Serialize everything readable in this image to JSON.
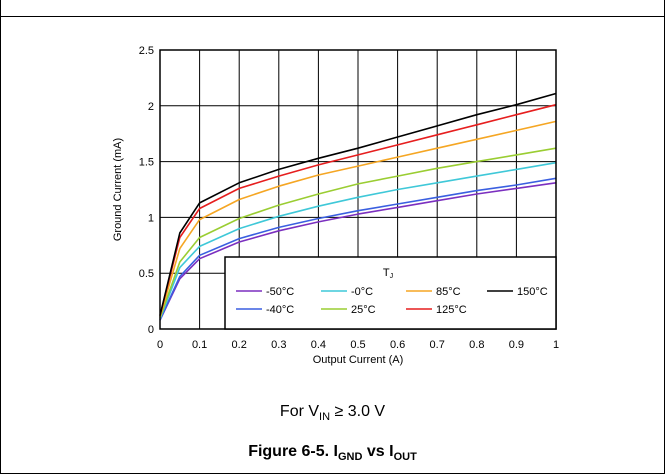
{
  "chart_data": {
    "type": "line",
    "xlabel": "Output Current (A)",
    "ylabel": "Ground Current (mA)",
    "xlim": [
      0,
      1
    ],
    "ylim": [
      0,
      2.5
    ],
    "x_ticks": [
      "0",
      "0.1",
      "0.2",
      "0.3",
      "0.4",
      "0.5",
      "0.6",
      "0.7",
      "0.8",
      "0.9",
      "1"
    ],
    "y_ticks": [
      "0",
      "0.5",
      "1",
      "1.5",
      "2",
      "2.5"
    ],
    "grid": true,
    "legend_title": "T",
    "legend_title_sub": "J",
    "legend_position": "bottom-right",
    "x": [
      0,
      0.05,
      0.1,
      0.2,
      0.3,
      0.4,
      0.5,
      0.6,
      0.7,
      0.8,
      0.9,
      1.0
    ],
    "series": [
      {
        "name": "-50°C",
        "color": "#7b2fbf",
        "values": [
          0.08,
          0.45,
          0.63,
          0.78,
          0.88,
          0.96,
          1.03,
          1.09,
          1.15,
          1.21,
          1.26,
          1.31
        ]
      },
      {
        "name": "-40°C",
        "color": "#3a5fe0",
        "values": [
          0.08,
          0.47,
          0.66,
          0.81,
          0.91,
          0.99,
          1.06,
          1.12,
          1.18,
          1.24,
          1.29,
          1.35
        ]
      },
      {
        "name": "-0°C",
        "color": "#3fc8d8",
        "values": [
          0.09,
          0.55,
          0.74,
          0.9,
          1.01,
          1.1,
          1.18,
          1.25,
          1.31,
          1.37,
          1.43,
          1.49
        ]
      },
      {
        "name": "25°C",
        "color": "#9acd32",
        "values": [
          0.1,
          0.6,
          0.82,
          0.99,
          1.11,
          1.21,
          1.3,
          1.37,
          1.44,
          1.5,
          1.56,
          1.62
        ]
      },
      {
        "name": "85°C",
        "color": "#f5a623",
        "values": [
          0.11,
          0.72,
          0.98,
          1.16,
          1.28,
          1.38,
          1.46,
          1.54,
          1.62,
          1.7,
          1.78,
          1.86
        ]
      },
      {
        "name": "125°C",
        "color": "#e61e1e",
        "values": [
          0.12,
          0.82,
          1.08,
          1.26,
          1.37,
          1.47,
          1.56,
          1.65,
          1.74,
          1.83,
          1.92,
          2.01
        ]
      },
      {
        "name": "150°C",
        "color": "#000000",
        "values": [
          0.12,
          0.86,
          1.13,
          1.31,
          1.43,
          1.53,
          1.62,
          1.72,
          1.82,
          1.92,
          2.01,
          2.11
        ]
      }
    ]
  },
  "condition": {
    "prefix": "For V",
    "sub": "IN",
    "suffix": " ≥ 3.0 V"
  },
  "caption": {
    "prefix": "Figure 6-5. I",
    "sub1": "GND",
    "mid": " vs I",
    "sub2": "OUT"
  }
}
